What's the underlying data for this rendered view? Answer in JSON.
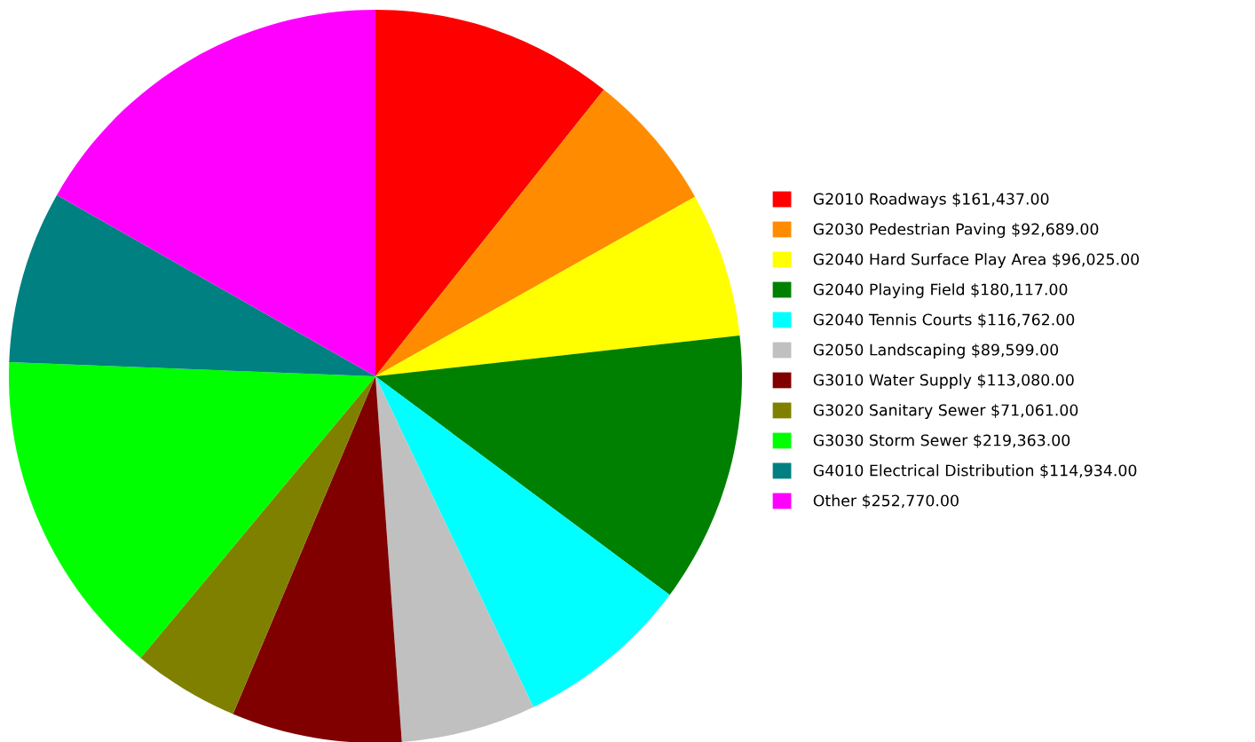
{
  "chart_data": {
    "type": "pie",
    "categories": [
      "G2010 Roadways",
      "G2030 Pedestrian Paving",
      "G2040 Hard Surface Play Area",
      "G2040 Playing Field",
      "G2040 Tennis Courts",
      "G2050 Landscaping",
      "G3010 Water Supply",
      "G3020 Sanitary Sewer",
      "G3030 Storm Sewer",
      "G4010 Electrical Distribution",
      "Other"
    ],
    "values": [
      161437,
      92689,
      96025,
      180117,
      116762,
      89599,
      113080,
      71061,
      219363,
      114934,
      252770
    ],
    "value_labels": [
      "$161,437.00",
      "$92,689.00",
      "$96,025.00",
      "$180,117.00",
      "$116,762.00",
      "$89,599.00",
      "$113,080.00",
      "$71,061.00",
      "$219,363.00",
      "$114,934.00",
      "$252,770.00"
    ],
    "colors": [
      "#ff0000",
      "#ff8c00",
      "#ffff00",
      "#008000",
      "#00ffff",
      "#c0c0c0",
      "#800000",
      "#808000",
      "#00ff00",
      "#008080",
      "#ff00ff"
    ],
    "legend": "right"
  }
}
